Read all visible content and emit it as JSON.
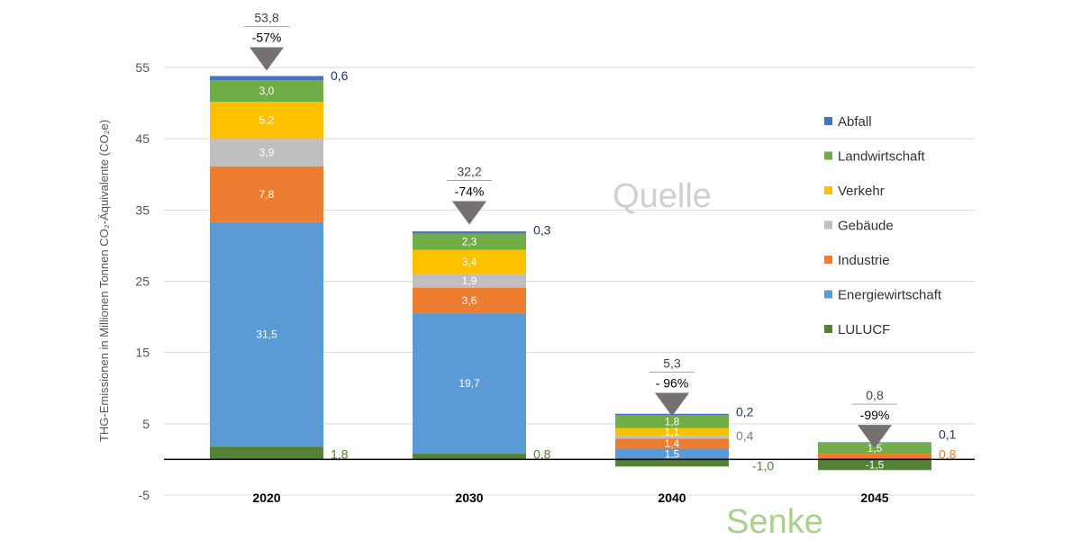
{
  "chart_data": {
    "type": "bar",
    "stacked": true,
    "categories": [
      "2020",
      "2030",
      "2040",
      "2045"
    ],
    "ylabel": "THG-Emissionen in Millionen Tonnen CO₂-Äquivalente (CO₂e)",
    "ylim": [
      -5,
      55
    ],
    "yticks": [
      "-5",
      "5",
      "15",
      "25",
      "35",
      "45",
      "55"
    ],
    "grid": true,
    "legend_position": "right",
    "series": [
      {
        "name": "LULUCF",
        "color": "#548235",
        "values": [
          1.8,
          0.8,
          -1.0,
          -1.5
        ],
        "labels": [
          "1,8",
          "0,8",
          "-1,0",
          "-1,5"
        ]
      },
      {
        "name": "Energiewirtschaft",
        "color": "#5b9bd5",
        "values": [
          31.5,
          19.7,
          1.5,
          0
        ],
        "labels": [
          "31,5",
          "19,7",
          "1,5",
          ""
        ]
      },
      {
        "name": "Industrie",
        "color": "#ed7d31",
        "values": [
          7.8,
          3.6,
          1.4,
          0.8
        ],
        "labels": [
          "7,8",
          "3,6",
          "1,4",
          "0,8"
        ]
      },
      {
        "name": "Gebäude",
        "color": "#bfbfbf",
        "values": [
          3.9,
          1.9,
          0.4,
          0
        ],
        "labels": [
          "3,9",
          "1,9",
          "0,4",
          ""
        ]
      },
      {
        "name": "Verkehr",
        "color": "#ffc000",
        "values": [
          5.2,
          3.4,
          1.1,
          0
        ],
        "labels": [
          "5,2",
          "3,4",
          "1,1",
          ""
        ]
      },
      {
        "name": "Landwirtschaft",
        "color": "#70ad47",
        "values": [
          3.0,
          2.3,
          1.8,
          1.5
        ],
        "labels": [
          "3,0",
          "2,3",
          "1,8",
          "1,5"
        ]
      },
      {
        "name": "Abfall",
        "color": "#4472c4",
        "values": [
          0.6,
          0.3,
          0.2,
          0.1
        ],
        "labels": [
          "0,6",
          "0,3",
          "0,2",
          "0,1"
        ]
      }
    ],
    "totals": [
      "53,8",
      "32,2",
      "5,3",
      "0,8"
    ],
    "total_values": [
      53.8,
      32.2,
      5.3,
      0.8
    ],
    "reductions": [
      "-57%",
      "-74%",
      "- 96%",
      "-99%"
    ],
    "annotations": {
      "source": "Quelle",
      "sink": "Senke"
    },
    "annotation_colors": {
      "source": "#d0d0d0",
      "sink": "#a9d18e"
    }
  }
}
